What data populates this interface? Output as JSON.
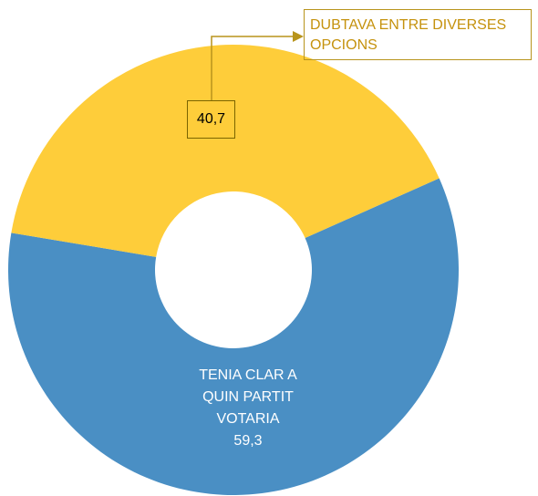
{
  "chart_data": {
    "type": "donut",
    "categories": [
      "TENIA CLAR A QUIN PARTIT VOTARIA",
      "DUBTAVA ENTRE DIVERSES OPCIONS"
    ],
    "values": [
      59.3,
      40.7
    ],
    "value_labels": [
      "59,3",
      "40,7"
    ],
    "colors": [
      "#4a8fc4",
      "#fecd3a"
    ]
  }
}
